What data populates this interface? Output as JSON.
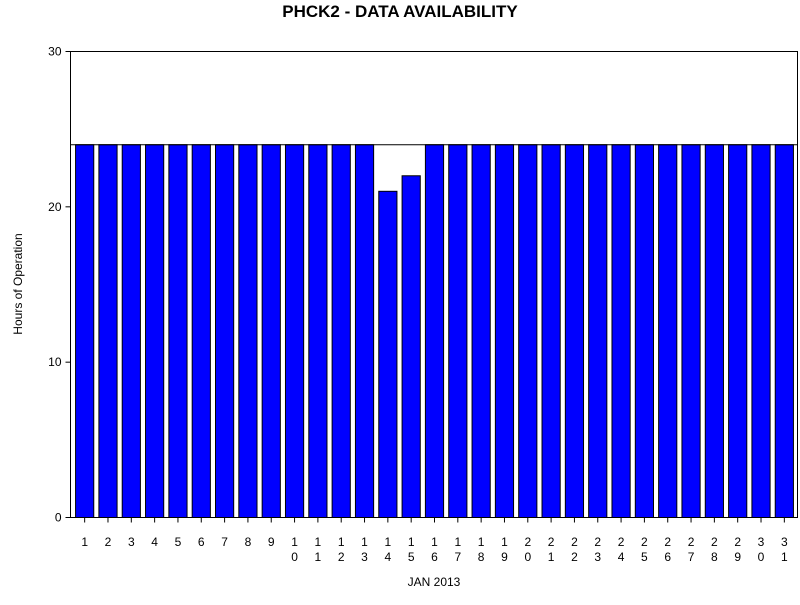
{
  "chart_data": {
    "type": "bar",
    "title": "PHCK2 - DATA AVAILABILITY",
    "xlabel": "JAN 2013",
    "ylabel": "Hours of Operation",
    "ylim": [
      0,
      30
    ],
    "yticks": [
      0,
      10,
      20,
      30
    ],
    "reference_line": 24,
    "grid": false,
    "bar_color": "#0000ff",
    "categories": [
      "1",
      "2",
      "3",
      "4",
      "5",
      "6",
      "7",
      "8",
      "9",
      "10",
      "11",
      "12",
      "13",
      "14",
      "15",
      "16",
      "17",
      "18",
      "19",
      "20",
      "21",
      "22",
      "23",
      "24",
      "25",
      "26",
      "27",
      "28",
      "29",
      "30",
      "31"
    ],
    "values": [
      24,
      24,
      24,
      24,
      24,
      24,
      24,
      24,
      24,
      24,
      24,
      24,
      24,
      21,
      22,
      24,
      24,
      24,
      24,
      24,
      24,
      24,
      24,
      24,
      24,
      24,
      24,
      24,
      24,
      24,
      24
    ]
  }
}
